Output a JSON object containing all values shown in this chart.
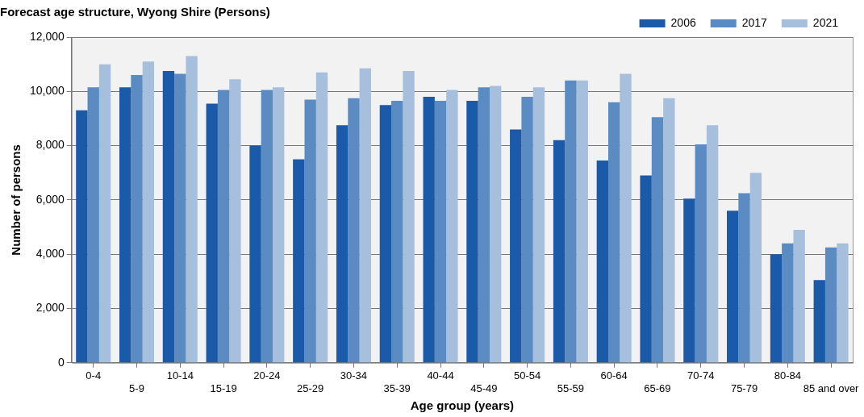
{
  "chart_data": {
    "type": "bar",
    "title": "Forecast age structure, Wyong Shire (Persons)",
    "xlabel": "Age group (years)",
    "ylabel": "Number of persons",
    "categories": [
      "0-4",
      "5-9",
      "10-14",
      "15-19",
      "20-24",
      "25-29",
      "30-34",
      "35-39",
      "40-44",
      "45-49",
      "50-54",
      "55-59",
      "60-64",
      "65-69",
      "70-74",
      "75-79",
      "80-84",
      "85 and over"
    ],
    "series": [
      {
        "name": "2006",
        "color": "#1a5aa8",
        "values": [
          9300,
          10150,
          10750,
          9550,
          8000,
          7500,
          8750,
          9500,
          9800,
          9650,
          8600,
          8200,
          7450,
          6900,
          6050,
          5600,
          4000,
          3050
        ]
      },
      {
        "name": "2017",
        "color": "#5a8bc3",
        "values": [
          10150,
          10600,
          10650,
          10050,
          10050,
          9700,
          9750,
          9650,
          9650,
          10150,
          9800,
          10400,
          9600,
          9050,
          8050,
          6250,
          4400,
          4250
        ]
      },
      {
        "name": "2021",
        "color": "#a6bfdc",
        "values": [
          11000,
          11100,
          11300,
          10450,
          10150,
          10700,
          10850,
          10750,
          10050,
          10200,
          10150,
          10400,
          10650,
          9750,
          8750,
          7000,
          4900,
          4400
        ]
      }
    ],
    "ylim": [
      0,
      12000
    ],
    "yticks": [
      0,
      {
        "value": 2000,
        "label": "2,000"
      },
      {
        "value": 4000,
        "label": "4,000"
      },
      {
        "value": 6000,
        "label": "6,000"
      },
      {
        "value": 8000,
        "label": "8,000"
      },
      {
        "value": 10000,
        "label": "10,000"
      },
      {
        "value": 12000,
        "label": "12,000"
      }
    ],
    "grid": "y",
    "legend": "top right"
  }
}
